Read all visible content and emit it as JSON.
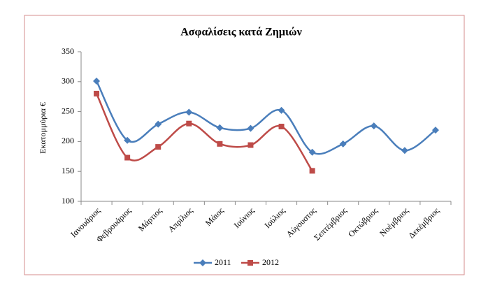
{
  "chart_data": {
    "type": "line",
    "title": "Ασφαλίσεις κατά Ζημιών",
    "y_label": "Εκατομμύρια €",
    "categories": [
      "Ιανουάριος",
      "Φεβρουάριος",
      "Μάρτιος",
      "Απρίλιος",
      "Μάιος",
      "Ιούνιος",
      "Ιούλιος",
      "Αύγουστος",
      "Σεπτέμβριος",
      "Οκτώβριος",
      "Νοέμβριος",
      "Δεκέμβριος"
    ],
    "series": [
      {
        "name": "2011",
        "color": "#4a7ebb",
        "marker": "diamond",
        "values": [
          301,
          202,
          229,
          249,
          223,
          222,
          252,
          182,
          196,
          226,
          185,
          219
        ]
      },
      {
        "name": "2012",
        "color": "#be4b48",
        "marker": "square",
        "values": [
          280,
          173,
          191,
          230,
          196,
          194,
          225,
          151,
          null,
          null,
          null,
          null
        ]
      }
    ],
    "ylim": [
      100,
      350
    ],
    "yticks": [
      100,
      150,
      200,
      250,
      300,
      350
    ],
    "grid": false,
    "smooth": true,
    "legend": "bottom"
  }
}
